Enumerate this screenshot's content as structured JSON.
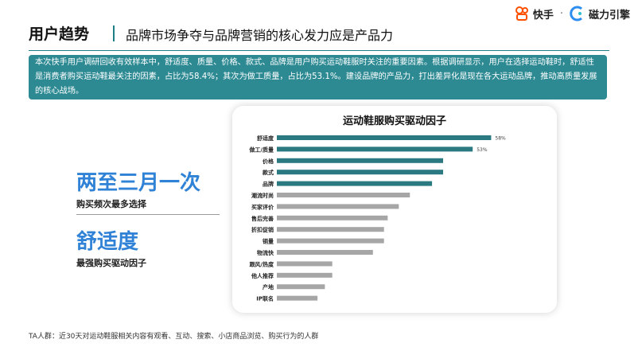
{
  "header": {
    "title": "用户趋势",
    "subtitle": "品牌市场争夺与品牌营销的核心发力应是产品力"
  },
  "brand": {
    "kuaishou": "快手",
    "separator": "·",
    "cili": "磁力引擎"
  },
  "summary": "本次快手用户调研回收有效样本中，舒适度、质量、价格、款式、品牌是用户购买运动鞋服时关注的重要因素。根据调研显示，用户在选择运动鞋时，舒适性是消费者购买运动鞋最关注的因素，占比为58.4%；其次为做工质量，占比为53.1%。建设品牌的产品力，打出差异化是现在各大运动品牌，推动高质量发展的核心战场。",
  "callouts": [
    {
      "value": "两至三月一次",
      "label": "购买频次最多选择"
    },
    {
      "value": "舒适度",
      "label": "最强购买驱动因子"
    }
  ],
  "footnote": "TA人群：近30天对运动鞋服相关内容有观看、互动、搜索、小店商品浏览、购买行为的人群",
  "colors": {
    "accent": "#2d8a93",
    "bar_highlight": "#2b7a82",
    "bar_muted": "#a6a6a6",
    "callout_blue": "#2f82d6"
  },
  "chart_data": {
    "type": "bar",
    "orientation": "horizontal",
    "title": "运动鞋服购买驱动因子",
    "categories": [
      "舒适度",
      "做工/质量",
      "价格",
      "款式",
      "品牌",
      "潮流时尚",
      "买家评价",
      "售后完善",
      "折扣促销",
      "销量",
      "物流快",
      "跟风/热度",
      "他人推荐",
      "产地",
      "IP联名"
    ],
    "values": [
      58,
      53,
      45,
      45,
      42,
      36,
      33,
      30,
      29,
      29,
      26,
      15,
      15,
      13,
      11
    ],
    "data_labels": [
      "58%",
      "53%",
      "",
      "",
      "",
      "",
      "",
      "",
      "",
      "",
      "",
      "",
      "",
      "",
      ""
    ],
    "highlight_count": 5,
    "xlim": [
      0,
      62
    ],
    "grid": false,
    "legend": "none"
  }
}
